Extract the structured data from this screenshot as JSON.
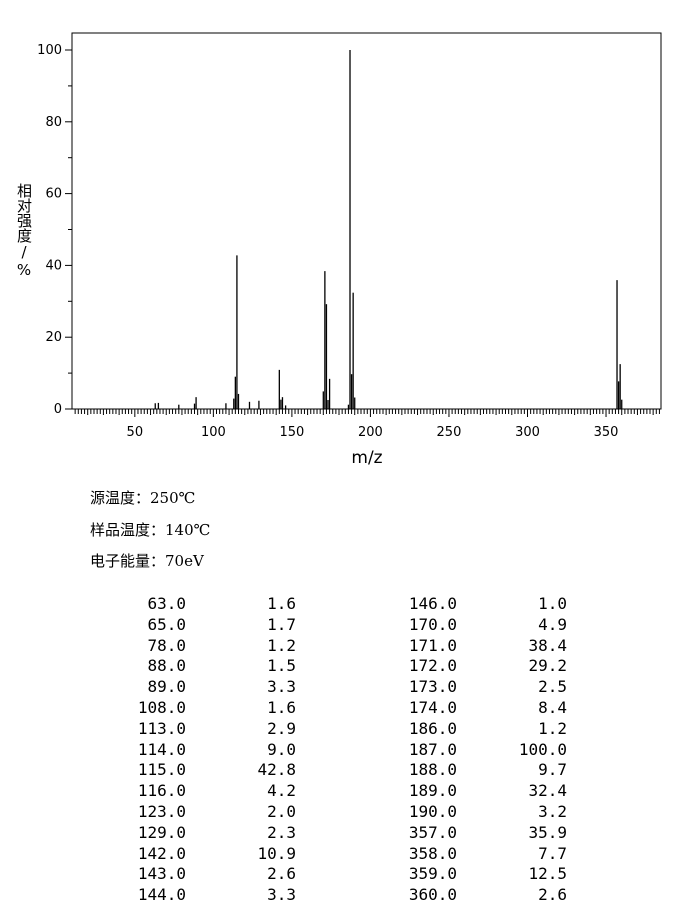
{
  "chart_data": {
    "type": "bar",
    "xlabel": "m/z",
    "ylabel": "相对强度/%",
    "xlim": [
      10,
      385
    ],
    "ylim": [
      0,
      105
    ],
    "xticks": [
      50,
      100,
      150,
      200,
      250,
      300,
      350
    ],
    "yticks": [
      0,
      20,
      40,
      60,
      80,
      100
    ],
    "grid": false,
    "peaks": [
      {
        "mz": 63.0,
        "intensity": 1.6
      },
      {
        "mz": 65.0,
        "intensity": 1.7
      },
      {
        "mz": 78.0,
        "intensity": 1.2
      },
      {
        "mz": 88.0,
        "intensity": 1.5
      },
      {
        "mz": 89.0,
        "intensity": 3.3
      },
      {
        "mz": 108.0,
        "intensity": 1.6
      },
      {
        "mz": 113.0,
        "intensity": 2.9
      },
      {
        "mz": 114.0,
        "intensity": 9.0
      },
      {
        "mz": 115.0,
        "intensity": 42.8
      },
      {
        "mz": 116.0,
        "intensity": 4.2
      },
      {
        "mz": 123.0,
        "intensity": 2.0
      },
      {
        "mz": 129.0,
        "intensity": 2.3
      },
      {
        "mz": 142.0,
        "intensity": 10.9
      },
      {
        "mz": 143.0,
        "intensity": 2.6
      },
      {
        "mz": 144.0,
        "intensity": 3.3
      },
      {
        "mz": 146.0,
        "intensity": 1.0
      },
      {
        "mz": 170.0,
        "intensity": 4.9
      },
      {
        "mz": 171.0,
        "intensity": 38.4
      },
      {
        "mz": 172.0,
        "intensity": 29.2
      },
      {
        "mz": 173.0,
        "intensity": 2.5
      },
      {
        "mz": 174.0,
        "intensity": 8.4
      },
      {
        "mz": 186.0,
        "intensity": 1.2
      },
      {
        "mz": 187.0,
        "intensity": 100.0
      },
      {
        "mz": 188.0,
        "intensity": 9.7
      },
      {
        "mz": 189.0,
        "intensity": 32.4
      },
      {
        "mz": 190.0,
        "intensity": 3.2
      },
      {
        "mz": 357.0,
        "intensity": 35.9
      },
      {
        "mz": 358.0,
        "intensity": 7.7
      },
      {
        "mz": 359.0,
        "intensity": 12.5
      },
      {
        "mz": 360.0,
        "intensity": 2.6
      }
    ]
  },
  "conditions": {
    "source_temp": "源温度：250℃",
    "sample_temp": "样品温度：140℃",
    "electron_energy": "电子能量：70eV"
  },
  "peak_table": {
    "left": [
      [
        "63.0",
        "1.6"
      ],
      [
        "65.0",
        "1.7"
      ],
      [
        "78.0",
        "1.2"
      ],
      [
        "88.0",
        "1.5"
      ],
      [
        "89.0",
        "3.3"
      ],
      [
        "108.0",
        "1.6"
      ],
      [
        "113.0",
        "2.9"
      ],
      [
        "114.0",
        "9.0"
      ],
      [
        "115.0",
        "42.8"
      ],
      [
        "116.0",
        "4.2"
      ],
      [
        "123.0",
        "2.0"
      ],
      [
        "129.0",
        "2.3"
      ],
      [
        "142.0",
        "10.9"
      ],
      [
        "143.0",
        "2.6"
      ],
      [
        "144.0",
        "3.3"
      ]
    ],
    "right": [
      [
        "146.0",
        "1.0"
      ],
      [
        "170.0",
        "4.9"
      ],
      [
        "171.0",
        "38.4"
      ],
      [
        "172.0",
        "29.2"
      ],
      [
        "173.0",
        "2.5"
      ],
      [
        "174.0",
        "8.4"
      ],
      [
        "186.0",
        "1.2"
      ],
      [
        "187.0",
        "100.0"
      ],
      [
        "188.0",
        "9.7"
      ],
      [
        "189.0",
        "32.4"
      ],
      [
        "190.0",
        "3.2"
      ],
      [
        "357.0",
        "35.9"
      ],
      [
        "358.0",
        "7.7"
      ],
      [
        "359.0",
        "12.5"
      ],
      [
        "360.0",
        "2.6"
      ]
    ]
  }
}
